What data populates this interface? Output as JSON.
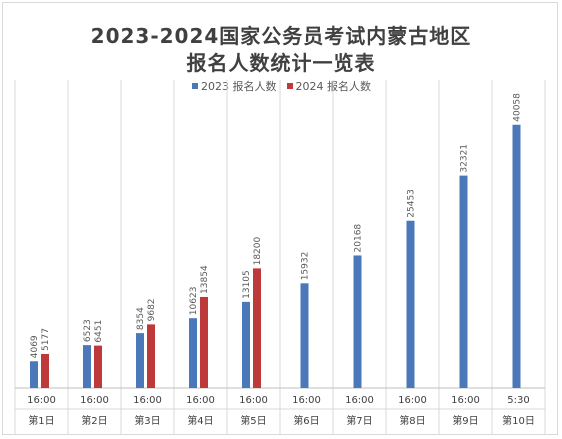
{
  "chart_data": {
    "type": "bar",
    "title": "2023-2024国家公务员考试内蒙古地区",
    "subtitle": "报名人数统计一览表",
    "categories": [
      {
        "time": "16:00",
        "day": "第1日"
      },
      {
        "time": "16:00",
        "day": "第2日"
      },
      {
        "time": "16:00",
        "day": "第3日"
      },
      {
        "time": "16:00",
        "day": "第4日"
      },
      {
        "time": "16:00",
        "day": "第5日"
      },
      {
        "time": "16:00",
        "day": "第6日"
      },
      {
        "time": "16:00",
        "day": "第7日"
      },
      {
        "time": "16:00",
        "day": "第8日"
      },
      {
        "time": "16:00",
        "day": "第9日"
      },
      {
        "time": "5:30",
        "day": "第10日"
      }
    ],
    "series": [
      {
        "name": "2023 报名人数",
        "color": "#4a78b8",
        "values": [
          4069,
          6523,
          8354,
          10623,
          13105,
          15932,
          20168,
          25453,
          32321,
          40058
        ]
      },
      {
        "name": "2024 报名人数",
        "color": "#be3a3a",
        "values": [
          5177,
          6451,
          9682,
          13854,
          18200,
          null,
          null,
          null,
          null,
          null
        ]
      }
    ],
    "ylim": [
      0,
      42000
    ],
    "grid": true,
    "legend_position": "top"
  }
}
